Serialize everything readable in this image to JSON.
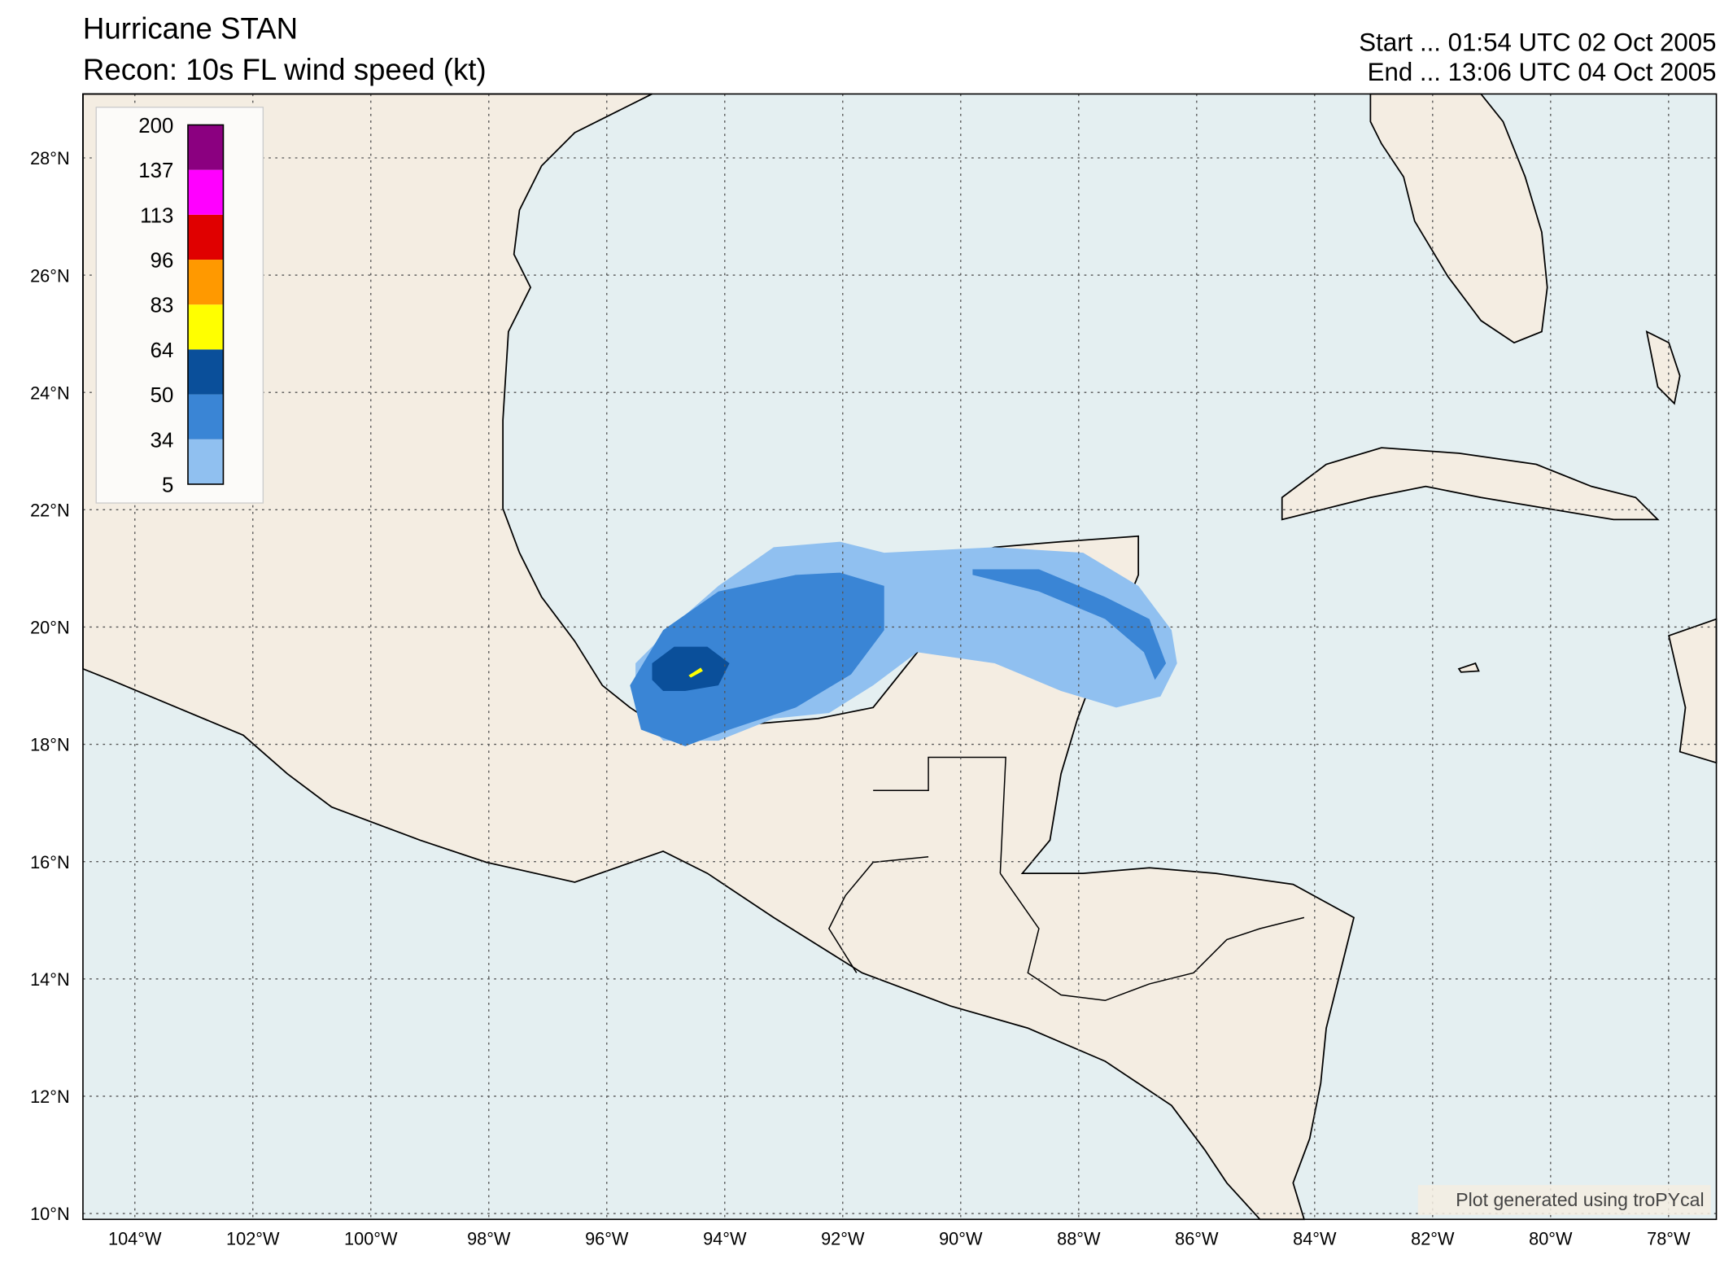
{
  "map": {
    "title": "Hurricane STAN",
    "subtitle": "Recon: 10s FL wind speed (kt)",
    "start": "Start ... 01:54 UTC 02 Oct 2005",
    "end": "End ... 13:06 UTC 04 Oct 2005",
    "credit": "Plot generated using troPYcal",
    "lonlim": [
      -104.88,
      -77.19
    ],
    "latlim": [
      9.9,
      29.09
    ],
    "lonticks": [
      {
        "value": -104,
        "label": "104°W"
      },
      {
        "value": -102,
        "label": "102°W"
      },
      {
        "value": -100,
        "label": "100°W"
      },
      {
        "value": -98,
        "label": "98°W"
      },
      {
        "value": -96,
        "label": "96°W"
      },
      {
        "value": -94,
        "label": "94°W"
      },
      {
        "value": -92,
        "label": "92°W"
      },
      {
        "value": -90,
        "label": "90°W"
      },
      {
        "value": -88,
        "label": "88°W"
      },
      {
        "value": -86,
        "label": "86°W"
      },
      {
        "value": -84,
        "label": "84°W"
      },
      {
        "value": -82,
        "label": "82°W"
      },
      {
        "value": -80,
        "label": "80°W"
      },
      {
        "value": -78,
        "label": "78°W"
      }
    ],
    "latticks": [
      {
        "value": 10,
        "label": "10°N"
      },
      {
        "value": 12,
        "label": "12°N"
      },
      {
        "value": 14,
        "label": "14°N"
      },
      {
        "value": 16,
        "label": "16°N"
      },
      {
        "value": 18,
        "label": "18°N"
      },
      {
        "value": 20,
        "label": "20°N"
      },
      {
        "value": 22,
        "label": "22°N"
      },
      {
        "value": 24,
        "label": "24°N"
      },
      {
        "value": 26,
        "label": "26°N"
      },
      {
        "value": 28,
        "label": "28°N"
      }
    ],
    "colorbar": {
      "levels": [
        5,
        34,
        50,
        64,
        83,
        96,
        113,
        137,
        200
      ],
      "colors": [
        "#90c0f0",
        "#3a85d5",
        "#0a4f9a",
        "#ffff00",
        "#ff9900",
        "#e00000",
        "#ff00ff",
        "#8b0080"
      ]
    }
  }
}
